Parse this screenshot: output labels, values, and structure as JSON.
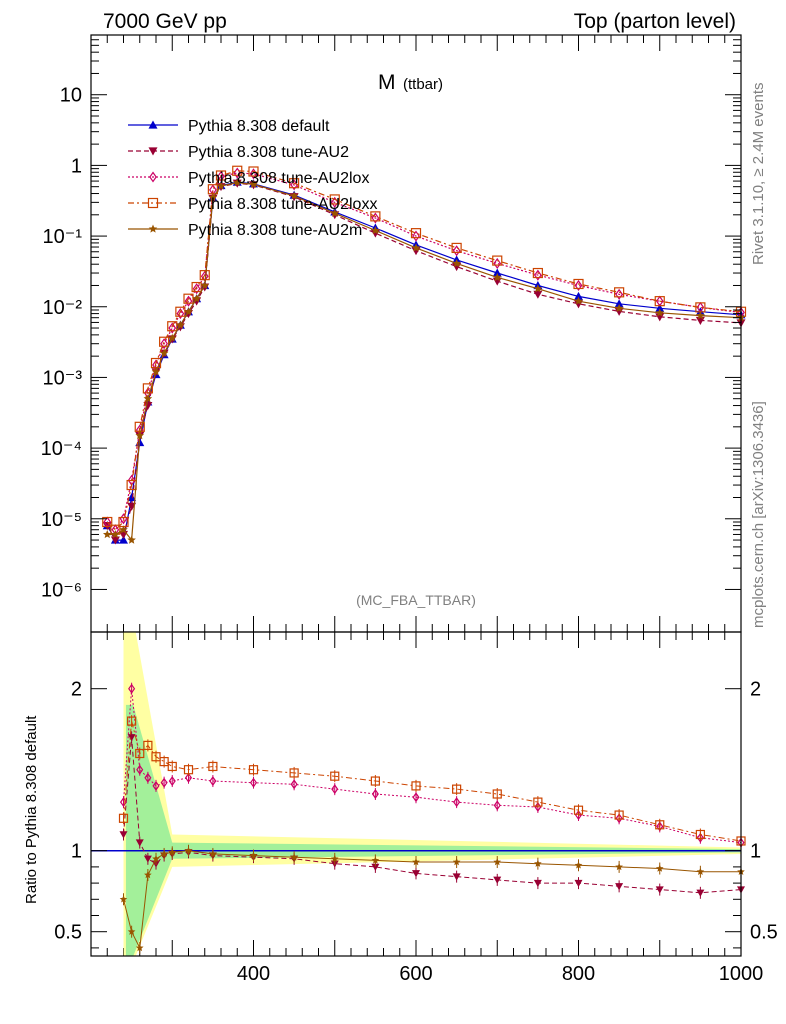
{
  "header": {
    "left": "7000 GeV pp",
    "right": "Top (parton level)"
  },
  "side": {
    "rivet": "Rivet 3.1.10, ≥ 2.4M events",
    "mcplots": "mcplots.cern.ch [arXiv:1306.3436]"
  },
  "chart_data": [
    {
      "type": "line",
      "title": "M",
      "title_sub": "(ttbar)",
      "watermark": "(MC_FBA_TTBAR)",
      "yscale": "log",
      "xlim": [
        200,
        1000
      ],
      "ylim": [
        2.5e-07,
        70
      ],
      "xticks": [
        400,
        600,
        800,
        1000
      ],
      "ytick_labels": [
        "10",
        "1",
        "10⁻¹",
        "10⁻²",
        "10⁻³",
        "10⁻⁴",
        "10⁻⁵",
        "10⁻⁶"
      ],
      "legend_position": "top-left",
      "series": [
        {
          "name": "Pythia 8.308 default",
          "color": "#0000cc",
          "marker": "triangle-up",
          "line": "solid",
          "x": [
            220,
            230,
            240,
            250,
            260,
            270,
            280,
            290,
            300,
            310,
            320,
            330,
            340,
            350,
            360,
            380,
            400,
            450,
            500,
            550,
            600,
            650,
            700,
            750,
            800,
            850,
            900,
            950,
            1000
          ],
          "y": [
            8e-06,
            5e-06,
            5e-06,
            2e-05,
            0.00012,
            0.00045,
            0.0011,
            0.0021,
            0.0035,
            0.0055,
            0.0085,
            0.013,
            0.02,
            0.35,
            0.52,
            0.58,
            0.55,
            0.38,
            0.22,
            0.13,
            0.075,
            0.046,
            0.03,
            0.02,
            0.014,
            0.011,
            0.0095,
            0.0085,
            0.0077
          ]
        },
        {
          "name": "Pythia 8.308 tune-AU2",
          "color": "#990033",
          "marker": "triangle-down",
          "line": "dashed",
          "x": [
            220,
            230,
            240,
            250,
            260,
            270,
            280,
            290,
            300,
            310,
            320,
            330,
            340,
            350,
            360,
            380,
            400,
            450,
            500,
            550,
            600,
            650,
            700,
            750,
            800,
            850,
            900,
            950,
            1000
          ],
          "y": [
            8e-06,
            5e-06,
            6e-06,
            1.5e-05,
            0.00015,
            0.0004,
            0.0012,
            0.0022,
            0.0035,
            0.0052,
            0.008,
            0.012,
            0.019,
            0.34,
            0.5,
            0.56,
            0.53,
            0.36,
            0.2,
            0.11,
            0.062,
            0.037,
            0.023,
            0.015,
            0.011,
            0.0086,
            0.0072,
            0.0064,
            0.0059
          ]
        },
        {
          "name": "Pythia 8.308 tune-AU2lox",
          "color": "#cc0066",
          "marker": "diamond-open",
          "line": "dotted",
          "x": [
            220,
            230,
            240,
            250,
            260,
            270,
            280,
            290,
            300,
            310,
            320,
            330,
            340,
            350,
            360,
            380,
            400,
            450,
            500,
            550,
            600,
            650,
            700,
            750,
            800,
            850,
            900,
            950,
            1000
          ],
          "y": [
            9e-06,
            7e-06,
            1e-05,
            3.5e-05,
            0.00018,
            0.0006,
            0.0015,
            0.003,
            0.005,
            0.008,
            0.012,
            0.018,
            0.027,
            0.45,
            0.7,
            0.78,
            0.76,
            0.53,
            0.3,
            0.18,
            0.1,
            0.062,
            0.041,
            0.028,
            0.02,
            0.015,
            0.012,
            0.0098,
            0.0083
          ]
        },
        {
          "name": "Pythia 8.308 tune-AU2loxx",
          "color": "#cc4400",
          "marker": "square-open",
          "line": "dashdot",
          "x": [
            220,
            230,
            240,
            250,
            260,
            270,
            280,
            290,
            300,
            310,
            320,
            330,
            340,
            350,
            360,
            380,
            400,
            450,
            500,
            550,
            600,
            650,
            700,
            750,
            800,
            850,
            900,
            950,
            1000
          ],
          "y": [
            9e-06,
            7e-06,
            9e-06,
            3e-05,
            0.0002,
            0.0007,
            0.0016,
            0.0032,
            0.0053,
            0.0085,
            0.013,
            0.019,
            0.028,
            0.46,
            0.72,
            0.84,
            0.82,
            0.56,
            0.33,
            0.19,
            0.11,
            0.068,
            0.045,
            0.03,
            0.021,
            0.016,
            0.012,
            0.0098,
            0.0085
          ]
        },
        {
          "name": "Pythia 8.308 tune-AU2m",
          "color": "#995500",
          "marker": "star",
          "line": "solid",
          "x": [
            220,
            230,
            240,
            250,
            260,
            270,
            280,
            290,
            300,
            310,
            320,
            330,
            340,
            350,
            360,
            380,
            400,
            450,
            500,
            550,
            600,
            650,
            700,
            750,
            800,
            850,
            900,
            950,
            1000
          ],
          "y": [
            6e-06,
            6e-06,
            7e-06,
            5e-06,
            0.00015,
            0.0005,
            0.0012,
            0.0022,
            0.0036,
            0.0055,
            0.0085,
            0.013,
            0.02,
            0.35,
            0.51,
            0.57,
            0.54,
            0.37,
            0.21,
            0.12,
            0.068,
            0.041,
            0.026,
            0.018,
            0.012,
            0.0095,
            0.0082,
            0.0075,
            0.007
          ]
        }
      ]
    },
    {
      "type": "line",
      "ylabel": "Ratio to Pythia 8.308 default",
      "xlim": [
        200,
        1000
      ],
      "ylim": [
        0.35,
        2.35
      ],
      "xticks": [
        400,
        600,
        800,
        1000
      ],
      "yticks": [
        0.5,
        1,
        2
      ],
      "series": [
        {
          "name": "Pythia 8.308 tune-AU2",
          "color": "#990033",
          "x": [
            240,
            250,
            260,
            270,
            280,
            290,
            300,
            320,
            350,
            400,
            450,
            500,
            550,
            600,
            650,
            700,
            750,
            800,
            850,
            900,
            950,
            1000
          ],
          "y": [
            1.1,
            1.7,
            1.05,
            0.95,
            0.92,
            0.97,
            0.98,
            0.99,
            0.97,
            0.96,
            0.95,
            0.92,
            0.9,
            0.86,
            0.84,
            0.82,
            0.8,
            0.8,
            0.78,
            0.76,
            0.74,
            0.76
          ]
        },
        {
          "name": "Pythia 8.308 tune-AU2lox",
          "color": "#cc0066",
          "x": [
            240,
            250,
            260,
            270,
            280,
            290,
            300,
            320,
            350,
            400,
            450,
            500,
            550,
            600,
            650,
            700,
            750,
            800,
            850,
            900,
            950,
            1000
          ],
          "y": [
            1.3,
            2.0,
            1.5,
            1.45,
            1.4,
            1.42,
            1.43,
            1.45,
            1.43,
            1.42,
            1.41,
            1.38,
            1.35,
            1.33,
            1.3,
            1.28,
            1.27,
            1.22,
            1.2,
            1.15,
            1.08,
            1.05
          ]
        },
        {
          "name": "Pythia 8.308 tune-AU2loxx",
          "color": "#cc4400",
          "x": [
            240,
            250,
            260,
            270,
            280,
            290,
            300,
            320,
            350,
            400,
            450,
            500,
            550,
            600,
            650,
            700,
            750,
            800,
            850,
            900,
            950,
            1000
          ],
          "y": [
            1.2,
            1.8,
            1.6,
            1.65,
            1.58,
            1.55,
            1.52,
            1.5,
            1.52,
            1.5,
            1.48,
            1.46,
            1.43,
            1.4,
            1.38,
            1.35,
            1.3,
            1.25,
            1.22,
            1.16,
            1.1,
            1.06
          ]
        },
        {
          "name": "Pythia 8.308 tune-AU2m",
          "color": "#995500",
          "x": [
            240,
            250,
            260,
            270,
            280,
            290,
            300,
            320,
            350,
            400,
            450,
            500,
            550,
            600,
            650,
            700,
            750,
            800,
            850,
            900,
            950,
            1000
          ],
          "y": [
            0.7,
            0.5,
            0.4,
            0.85,
            0.95,
            0.98,
            0.99,
            1.0,
            0.98,
            0.97,
            0.96,
            0.95,
            0.94,
            0.93,
            0.93,
            0.93,
            0.92,
            0.91,
            0.9,
            0.89,
            0.87,
            0.87
          ]
        }
      ]
    }
  ]
}
